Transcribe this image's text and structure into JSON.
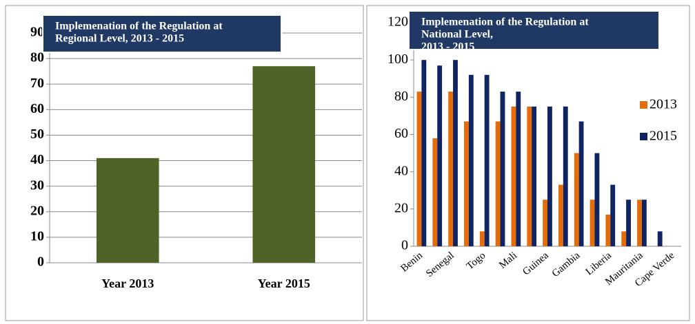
{
  "chart_data": [
    {
      "type": "bar",
      "title_lines": [
        "Implemenation of the Regulation at",
        "Regional Level, 2013 - 2015"
      ],
      "categories": [
        "Year 2013",
        "Year 2015"
      ],
      "values": [
        41,
        77
      ],
      "color": "#4f6228",
      "ylim": [
        0,
        90
      ],
      "yticks": [
        0,
        10,
        20,
        30,
        40,
        50,
        60,
        70,
        80,
        90
      ],
      "grid": true
    },
    {
      "type": "grouped_bar",
      "title_lines": [
        "Implemenation of the Regulation at",
        "National Level,",
        "2013 - 2015"
      ],
      "categories": [
        "Benin",
        null,
        "Senegal",
        null,
        "Togo",
        null,
        "Mali",
        null,
        "Guinea",
        null,
        "Gambia",
        null,
        "Liberia",
        null,
        "Mauritania",
        null,
        "Cape Verde"
      ],
      "series": [
        {
          "name": "2013",
          "color": "#e46c0a",
          "values": [
            83,
            58,
            83,
            67,
            8,
            67,
            75,
            75,
            25,
            33,
            50,
            25,
            17,
            8,
            25,
            0,
            0
          ]
        },
        {
          "name": "2015",
          "color": "#0f2463",
          "values": [
            100,
            97,
            100,
            92,
            92,
            83,
            83,
            75,
            75,
            75,
            67,
            50,
            33,
            25,
            25,
            8,
            0
          ]
        }
      ],
      "ylim": [
        0,
        120
      ],
      "yticks": [
        0,
        20,
        40,
        60,
        80,
        100,
        120
      ],
      "grid": false,
      "legend": "right"
    }
  ]
}
